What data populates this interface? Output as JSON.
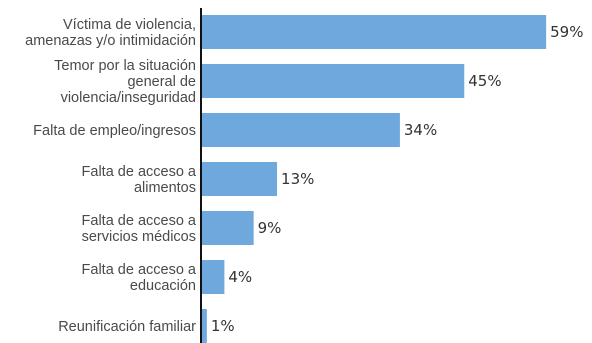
{
  "chart_data": {
    "type": "bar",
    "orientation": "horizontal",
    "categories": [
      [
        "Víctima de violencia,",
        "amenazas y/o intimidación"
      ],
      [
        "Temor por la situación",
        "general de",
        "violencia/inseguridad"
      ],
      [
        "Falta de empleo/ingresos"
      ],
      [
        "Falta de acceso a",
        "alimentos"
      ],
      [
        "Falta de acceso a",
        "servicios médicos"
      ],
      [
        "Falta de acceso a",
        "educación"
      ],
      [
        "Reunificación familiar"
      ]
    ],
    "values": [
      59,
      45,
      34,
      13,
      9,
      4,
      1
    ],
    "value_labels": [
      "59%",
      "45%",
      "34%",
      "13%",
      "9%",
      "4%",
      "1%"
    ],
    "title": "",
    "xlabel": "",
    "ylabel": "",
    "xlim": [
      0,
      60
    ],
    "grid": false,
    "legend": "none",
    "bar_color": "#6fa8dc",
    "axis_color": "#111111"
  }
}
